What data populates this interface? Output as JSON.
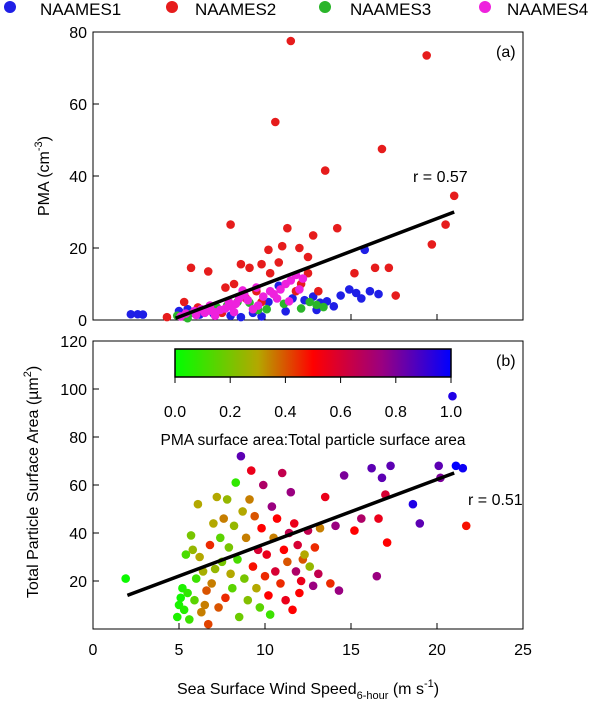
{
  "legend": {
    "items": [
      {
        "label": "NAAMES1",
        "color": "#1f1fe6"
      },
      {
        "label": "NAAMES2",
        "color": "#e61c1c"
      },
      {
        "label": "NAAMES3",
        "color": "#2ab52a"
      },
      {
        "label": "NAAMES4",
        "color": "#ee22dd"
      }
    ]
  },
  "chart_data": [
    {
      "type": "scatter",
      "panel_label": "(a)",
      "ylabel": "PMA (cm",
      "ylabel_sup": "-3",
      "ylabel_close": ")",
      "xlim": [
        0,
        25
      ],
      "ylim": [
        0,
        80
      ],
      "yticks": [
        "0",
        "20",
        "40",
        "60",
        "80"
      ],
      "annotation": "r = 0.57",
      "fit_line": {
        "x": [
          4.8,
          21
        ],
        "y": [
          0.5,
          30
        ]
      },
      "series": [
        {
          "name": "NAAMES1",
          "color": "#1f1fe6",
          "points": [
            [
              2.2,
              1.6
            ],
            [
              2.6,
              1.6
            ],
            [
              2.9,
              1.5
            ],
            [
              5.0,
              2.5
            ],
            [
              5.5,
              3.0
            ],
            [
              6.2,
              1.5
            ],
            [
              7.0,
              1.8
            ],
            [
              8.0,
              1.2
            ],
            [
              8.6,
              0.8
            ],
            [
              9.3,
              2.0
            ],
            [
              10.2,
              5.0
            ],
            [
              10.8,
              9.5
            ],
            [
              11.6,
              6.0
            ],
            [
              12.3,
              5.5
            ],
            [
              12.8,
              6.5
            ],
            [
              13.2,
              4.8
            ],
            [
              13.6,
              5.2
            ],
            [
              14.0,
              3.8
            ],
            [
              14.4,
              6.8
            ],
            [
              14.9,
              8.5
            ],
            [
              15.3,
              7.5
            ],
            [
              15.6,
              6.0
            ],
            [
              16.1,
              8.0
            ],
            [
              16.6,
              7.2
            ],
            [
              15.8,
              19.5
            ],
            [
              13.0,
              2.8
            ],
            [
              11.2,
              2.4
            ],
            [
              9.8,
              1.0
            ]
          ]
        },
        {
          "name": "NAAMES2",
          "color": "#e61c1c",
          "points": [
            [
              4.3,
              0.8
            ],
            [
              5.3,
              5.0
            ],
            [
              5.7,
              14.5
            ],
            [
              6.1,
              3.5
            ],
            [
              6.7,
              13.5
            ],
            [
              7.5,
              2.0
            ],
            [
              7.7,
              9.0
            ],
            [
              8.2,
              10.0
            ],
            [
              8.6,
              15.5
            ],
            [
              8.9,
              6.0
            ],
            [
              9.1,
              14.5
            ],
            [
              8.0,
              26.5
            ],
            [
              9.5,
              8.0
            ],
            [
              9.8,
              15.5
            ],
            [
              9.8,
              5.0
            ],
            [
              10.2,
              19.5
            ],
            [
              10.6,
              55.0
            ],
            [
              10.8,
              16.0
            ],
            [
              11.0,
              20.5
            ],
            [
              11.3,
              25.5
            ],
            [
              11.5,
              77.5
            ],
            [
              12.0,
              20.0
            ],
            [
              12.1,
              10.0
            ],
            [
              12.5,
              17.5
            ],
            [
              12.8,
              23.5
            ],
            [
              12.5,
              13.0
            ],
            [
              13.1,
              8.0
            ],
            [
              13.5,
              41.5
            ],
            [
              14.2,
              25.5
            ],
            [
              15.2,
              13.0
            ],
            [
              16.4,
              14.5
            ],
            [
              16.8,
              47.5
            ],
            [
              17.2,
              14.5
            ],
            [
              17.6,
              6.8
            ],
            [
              19.4,
              73.5
            ],
            [
              19.7,
              21.0
            ],
            [
              20.5,
              26.5
            ],
            [
              21.0,
              34.5
            ],
            [
              11.8,
              8.0
            ],
            [
              10.3,
              13.0
            ]
          ]
        },
        {
          "name": "NAAMES3",
          "color": "#2ab52a",
          "points": [
            [
              4.9,
              1.2
            ],
            [
              5.5,
              0.5
            ],
            [
              5.8,
              2.0
            ],
            [
              6.6,
              3.0
            ],
            [
              7.2,
              3.5
            ],
            [
              7.8,
              4.0
            ],
            [
              8.4,
              5.0
            ],
            [
              9.1,
              4.8
            ],
            [
              10.1,
              3.0
            ],
            [
              12.1,
              3.2
            ],
            [
              12.6,
              5.0
            ],
            [
              13.0,
              4.2
            ],
            [
              13.4,
              3.6
            ],
            [
              9.6,
              2.8
            ],
            [
              11.1,
              4.5
            ]
          ]
        },
        {
          "name": "NAAMES4",
          "color": "#ee22dd",
          "points": [
            [
              5.1,
              1.0
            ],
            [
              5.4,
              1.8
            ],
            [
              5.9,
              2.5
            ],
            [
              6.3,
              3.0
            ],
            [
              6.5,
              2.0
            ],
            [
              6.8,
              2.6
            ],
            [
              7.1,
              1.2
            ],
            [
              7.4,
              2.8
            ],
            [
              7.7,
              3.2
            ],
            [
              8.0,
              3.8
            ],
            [
              8.3,
              4.5
            ],
            [
              8.5,
              6.0
            ],
            [
              8.8,
              7.0
            ],
            [
              8.2,
              2.2
            ],
            [
              9.0,
              5.5
            ],
            [
              9.3,
              3.0
            ],
            [
              9.6,
              4.0
            ],
            [
              9.9,
              6.5
            ],
            [
              10.3,
              8.0
            ],
            [
              10.5,
              7.2
            ],
            [
              10.9,
              8.5
            ],
            [
              11.2,
              10.0
            ],
            [
              11.5,
              11.0
            ],
            [
              11.8,
              12.5
            ],
            [
              12.2,
              11.5
            ],
            [
              6.0,
              1.4
            ],
            [
              7.0,
              2.3
            ],
            [
              7.9,
              5.0
            ],
            [
              8.7,
              8.2
            ],
            [
              9.5,
              9.0
            ],
            [
              10.7,
              6.0
            ],
            [
              11.4,
              5.2
            ],
            [
              12.0,
              8.5
            ],
            [
              6.8,
              4.0
            ]
          ]
        }
      ]
    },
    {
      "type": "scatter",
      "panel_label": "(b)",
      "ylabel": "Total Particle Surface Area (µm",
      "ylabel_sup": "2",
      "ylabel_close": ")",
      "xlabel": "Sea Surface Wind Speed",
      "xlabel_sub": "6-hour",
      "xlabel_unit": " (m s",
      "xlabel_sup": "-1",
      "xlabel_close": ")",
      "xlim": [
        0,
        25
      ],
      "ylim": [
        0,
        120
      ],
      "xticks": [
        "0",
        "5",
        "10",
        "15",
        "20",
        "25"
      ],
      "yticks": [
        "20",
        "40",
        "60",
        "80",
        "100",
        "120"
      ],
      "annotation": "r = 0.51",
      "fit_line": {
        "x": [
          2,
          21
        ],
        "y": [
          14,
          65
        ]
      },
      "colorbar": {
        "ticks": [
          "0.0",
          "0.2",
          "0.4",
          "0.6",
          "0.8",
          "1.0"
        ],
        "label": "PMA surface area:Total particle surface area",
        "range": [
          0,
          1
        ]
      },
      "points": [
        [
          1.9,
          21,
          0.02
        ],
        [
          4.9,
          5,
          0.05
        ],
        [
          5.0,
          10,
          0.04
        ],
        [
          5.1,
          13,
          0.03
        ],
        [
          5.2,
          17,
          0.05
        ],
        [
          5.3,
          8,
          0.06
        ],
        [
          5.5,
          15,
          0.08
        ],
        [
          5.4,
          31,
          0.12
        ],
        [
          5.7,
          39,
          0.2
        ],
        [
          5.8,
          33,
          0.25
        ],
        [
          5.6,
          4,
          0.1
        ],
        [
          5.9,
          12,
          0.15
        ],
        [
          6.0,
          21,
          0.1
        ],
        [
          6.1,
          52,
          0.3
        ],
        [
          6.2,
          30,
          0.3
        ],
        [
          6.3,
          7,
          0.35
        ],
        [
          6.4,
          24,
          0.28
        ],
        [
          6.5,
          10,
          0.35
        ],
        [
          6.6,
          16,
          0.4
        ],
        [
          6.7,
          2,
          0.42
        ],
        [
          6.8,
          35,
          0.45
        ],
        [
          6.9,
          19,
          0.35
        ],
        [
          7.0,
          44,
          0.3
        ],
        [
          7.1,
          25,
          0.25
        ],
        [
          7.2,
          55,
          0.3
        ],
        [
          7.3,
          9,
          0.4
        ],
        [
          7.4,
          38,
          0.15
        ],
        [
          7.5,
          28,
          0.2
        ],
        [
          7.6,
          46,
          0.35
        ],
        [
          7.7,
          13,
          0.45
        ],
        [
          7.8,
          54,
          0.25
        ],
        [
          7.9,
          34,
          0.2
        ],
        [
          8.0,
          23,
          0.3
        ],
        [
          8.1,
          17,
          0.15
        ],
        [
          8.2,
          43,
          0.25
        ],
        [
          8.3,
          61,
          0.08
        ],
        [
          8.4,
          29,
          0.12
        ],
        [
          8.5,
          5,
          0.18
        ],
        [
          8.6,
          72,
          0.85
        ],
        [
          8.7,
          49,
          0.3
        ],
        [
          8.8,
          21,
          0.2
        ],
        [
          8.9,
          38,
          0.35
        ],
        [
          9.0,
          12,
          0.22
        ],
        [
          9.1,
          54,
          0.35
        ],
        [
          9.2,
          66,
          0.55
        ],
        [
          9.3,
          26,
          0.48
        ],
        [
          9.4,
          47,
          0.4
        ],
        [
          9.5,
          17,
          0.3
        ],
        [
          9.6,
          33,
          0.6
        ],
        [
          9.7,
          9,
          0.15
        ],
        [
          9.8,
          42,
          0.5
        ],
        [
          9.9,
          60,
          0.7
        ],
        [
          10.0,
          22,
          0.45
        ],
        [
          10.1,
          31,
          0.55
        ],
        [
          10.2,
          14,
          0.5
        ],
        [
          10.3,
          6,
          0.1
        ],
        [
          10.4,
          51,
          0.75
        ],
        [
          10.5,
          38,
          0.35
        ],
        [
          10.6,
          24,
          0.6
        ],
        [
          10.7,
          46,
          0.5
        ],
        [
          10.9,
          19,
          0.45
        ],
        [
          11.0,
          65,
          0.65
        ],
        [
          11.1,
          33,
          0.5
        ],
        [
          11.2,
          12,
          0.55
        ],
        [
          11.3,
          28,
          0.4
        ],
        [
          11.4,
          40,
          0.65
        ],
        [
          11.5,
          57,
          0.75
        ],
        [
          11.6,
          8,
          0.5
        ],
        [
          11.7,
          44,
          0.55
        ],
        [
          11.8,
          24,
          0.7
        ],
        [
          11.9,
          35,
          0.6
        ],
        [
          12.0,
          15,
          0.5
        ],
        [
          12.1,
          20,
          0.55
        ],
        [
          12.2,
          29,
          0.4
        ],
        [
          12.3,
          31,
          0.3
        ],
        [
          12.5,
          41,
          0.65
        ],
        [
          12.6,
          26,
          0.25
        ],
        [
          12.8,
          18,
          0.75
        ],
        [
          12.9,
          34,
          0.45
        ],
        [
          13.1,
          23,
          0.65
        ],
        [
          13.2,
          42,
          0.35
        ],
        [
          13.5,
          55,
          0.55
        ],
        [
          13.8,
          19,
          0.45
        ],
        [
          14.1,
          43,
          0.75
        ],
        [
          14.3,
          16,
          0.75
        ],
        [
          14.6,
          64,
          0.8
        ],
        [
          15.2,
          41,
          0.5
        ],
        [
          15.6,
          46,
          0.7
        ],
        [
          16.2,
          67,
          0.85
        ],
        [
          16.5,
          22,
          0.75
        ],
        [
          16.6,
          46,
          0.55
        ],
        [
          16.8,
          63,
          0.85
        ],
        [
          17.0,
          56,
          0.6
        ],
        [
          17.1,
          36,
          0.5
        ],
        [
          17.3,
          68,
          0.85
        ],
        [
          18.6,
          52,
          0.95
        ],
        [
          19.0,
          44,
          0.85
        ],
        [
          20.1,
          68,
          0.85
        ],
        [
          20.2,
          63,
          0.8
        ],
        [
          21.1,
          68,
          1.0
        ],
        [
          21.5,
          67,
          0.98
        ],
        [
          21.7,
          43,
          0.48
        ],
        [
          20.9,
          97,
          0.95
        ]
      ]
    }
  ]
}
